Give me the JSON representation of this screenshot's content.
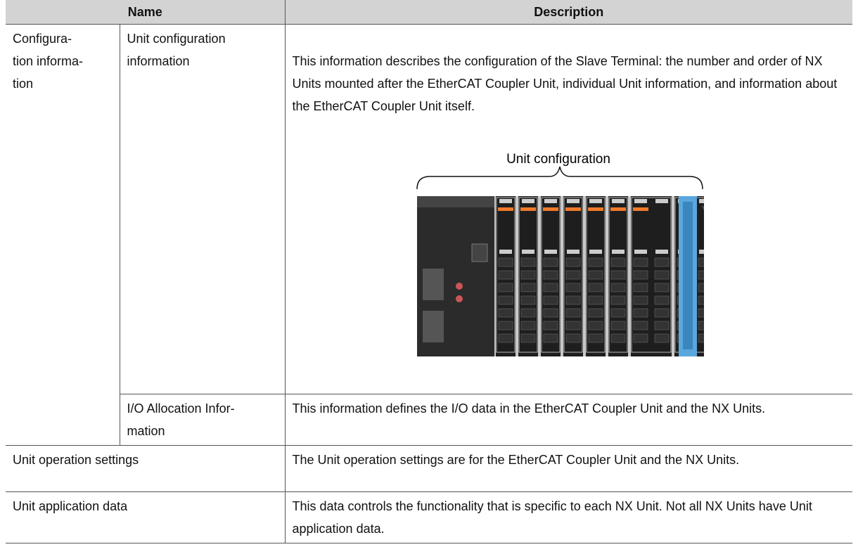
{
  "table": {
    "header": [
      "Name",
      "Description"
    ],
    "rows": [
      {
        "group": "Configura-\ntion informa-\ntion",
        "name": "Unit configuration\ninformation",
        "description": "This information describes the configuration of the Slave Terminal: the number and order of NX Units mounted after the EtherCAT Coupler Unit, individual Unit information, and information about the EtherCAT Coupler Unit itself.",
        "figure_label": "Unit configuration"
      },
      {
        "name": "I/O Allocation Infor-\nmation",
        "description": "This information defines the I/O data in the EtherCAT Coupler Unit and the NX Units."
      },
      {
        "name": "Unit operation settings",
        "description": "The Unit operation settings are for the EtherCAT Coupler Unit and the NX Units."
      },
      {
        "name": "Unit application data",
        "description": "This data controls the functionality that is specific to each NX Unit. Not all NX Units have Unit application data."
      }
    ]
  }
}
